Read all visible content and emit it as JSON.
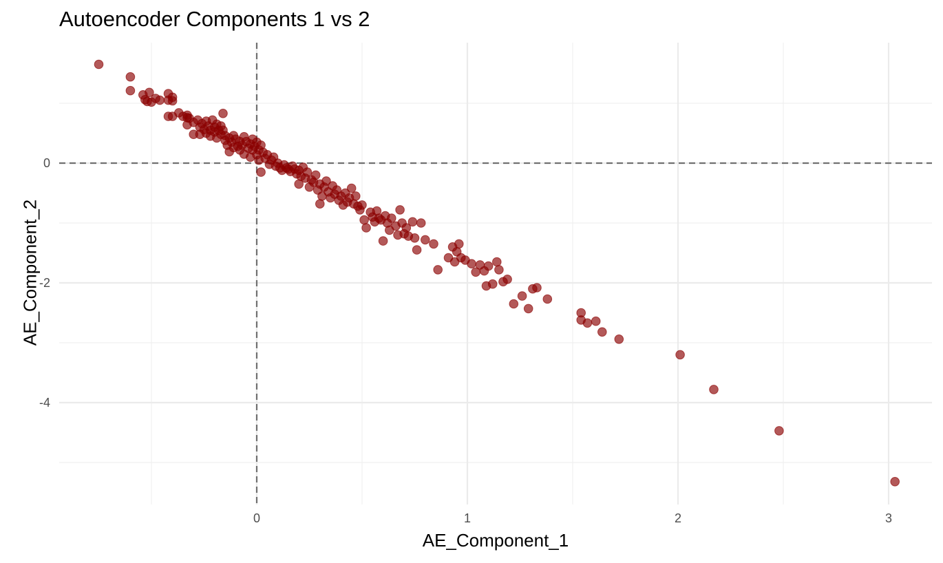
{
  "chart_data": {
    "type": "scatter",
    "title": "Autoencoder Components 1 vs 2",
    "xlabel": "AE_Component_1",
    "ylabel": "AE_Component_2",
    "xlim": [
      -0.95,
      3.2
    ],
    "ylim": [
      -5.7,
      2.0
    ],
    "x_ticks": [
      0,
      1,
      2,
      3
    ],
    "y_ticks": [
      0,
      -2,
      -4
    ],
    "grid": true,
    "reference_lines": {
      "x": 0,
      "y": 0,
      "style": "dashed"
    },
    "point_color": "#8B0000",
    "point_opacity": 0.65,
    "points": [
      [
        -0.75,
        1.65
      ],
      [
        -0.6,
        1.44
      ],
      [
        -0.6,
        1.21
      ],
      [
        -0.54,
        1.14
      ],
      [
        -0.51,
        1.18
      ],
      [
        -0.53,
        1.06
      ],
      [
        -0.52,
        1.03
      ],
      [
        -0.5,
        1.02
      ],
      [
        -0.48,
        1.08
      ],
      [
        -0.46,
        1.05
      ],
      [
        -0.42,
        1.05
      ],
      [
        -0.42,
        1.16
      ],
      [
        -0.4,
        1.1
      ],
      [
        -0.4,
        1.04
      ],
      [
        -0.42,
        0.78
      ],
      [
        -0.4,
        0.78
      ],
      [
        -0.37,
        0.84
      ],
      [
        -0.35,
        0.78
      ],
      [
        -0.33,
        0.8
      ],
      [
        -0.33,
        0.76
      ],
      [
        -0.33,
        0.64
      ],
      [
        -0.32,
        0.75
      ],
      [
        -0.3,
        0.68
      ],
      [
        -0.3,
        0.48
      ],
      [
        -0.28,
        0.72
      ],
      [
        -0.27,
        0.6
      ],
      [
        -0.27,
        0.48
      ],
      [
        -0.26,
        0.66
      ],
      [
        -0.25,
        0.56
      ],
      [
        -0.24,
        0.7
      ],
      [
        -0.24,
        0.5
      ],
      [
        -0.23,
        0.62
      ],
      [
        -0.22,
        0.55
      ],
      [
        -0.22,
        0.45
      ],
      [
        -0.21,
        0.72
      ],
      [
        -0.2,
        0.6
      ],
      [
        -0.2,
        0.52
      ],
      [
        -0.19,
        0.65
      ],
      [
        -0.19,
        0.42
      ],
      [
        -0.18,
        0.55
      ],
      [
        -0.17,
        0.48
      ],
      [
        -0.17,
        0.62
      ],
      [
        -0.16,
        0.83
      ],
      [
        -0.16,
        0.55
      ],
      [
        -0.15,
        0.38
      ],
      [
        -0.15,
        0.46
      ],
      [
        -0.14,
        0.3
      ],
      [
        -0.13,
        0.42
      ],
      [
        -0.13,
        0.19
      ],
      [
        -0.12,
        0.35
      ],
      [
        -0.11,
        0.46
      ],
      [
        -0.11,
        0.26
      ],
      [
        -0.1,
        0.4
      ],
      [
        -0.09,
        0.28
      ],
      [
        -0.08,
        0.36
      ],
      [
        -0.08,
        0.22
      ],
      [
        -0.07,
        0.3
      ],
      [
        -0.06,
        0.44
      ],
      [
        -0.06,
        0.15
      ],
      [
        -0.05,
        0.36
      ],
      [
        -0.04,
        0.25
      ],
      [
        -0.03,
        0.32
      ],
      [
        -0.03,
        0.1
      ],
      [
        -0.02,
        0.4
      ],
      [
        -0.02,
        0.22
      ],
      [
        -0.01,
        0.28
      ],
      [
        0.0,
        0.35
      ],
      [
        0.0,
        0.14
      ],
      [
        0.01,
        0.22
      ],
      [
        0.01,
        0.05
      ],
      [
        0.02,
        0.3
      ],
      [
        0.02,
        -0.15
      ],
      [
        0.03,
        0.18
      ],
      [
        0.04,
        0.08
      ],
      [
        0.05,
        0.14
      ],
      [
        0.06,
        -0.02
      ],
      [
        0.07,
        0.05
      ],
      [
        0.08,
        0.1
      ],
      [
        0.09,
        -0.05
      ],
      [
        0.1,
        0.0
      ],
      [
        0.11,
        -0.08
      ],
      [
        0.12,
        -0.12
      ],
      [
        0.13,
        -0.03
      ],
      [
        0.14,
        -0.08
      ],
      [
        0.15,
        -0.1
      ],
      [
        0.16,
        -0.14
      ],
      [
        0.17,
        -0.05
      ],
      [
        0.18,
        -0.1
      ],
      [
        0.19,
        -0.18
      ],
      [
        0.2,
        -0.12
      ],
      [
        0.2,
        -0.35
      ],
      [
        0.21,
        -0.22
      ],
      [
        0.22,
        -0.07
      ],
      [
        0.23,
        -0.25
      ],
      [
        0.24,
        -0.15
      ],
      [
        0.25,
        -0.4
      ],
      [
        0.26,
        -0.28
      ],
      [
        0.27,
        -0.32
      ],
      [
        0.28,
        -0.2
      ],
      [
        0.29,
        -0.45
      ],
      [
        0.3,
        -0.35
      ],
      [
        0.3,
        -0.68
      ],
      [
        0.31,
        -0.55
      ],
      [
        0.32,
        -0.4
      ],
      [
        0.33,
        -0.3
      ],
      [
        0.34,
        -0.48
      ],
      [
        0.35,
        -0.58
      ],
      [
        0.36,
        -0.38
      ],
      [
        0.37,
        -0.52
      ],
      [
        0.38,
        -0.45
      ],
      [
        0.39,
        -0.62
      ],
      [
        0.4,
        -0.55
      ],
      [
        0.41,
        -0.7
      ],
      [
        0.42,
        -0.5
      ],
      [
        0.43,
        -0.65
      ],
      [
        0.44,
        -0.58
      ],
      [
        0.45,
        -0.42
      ],
      [
        0.46,
        -0.68
      ],
      [
        0.47,
        -0.55
      ],
      [
        0.48,
        -0.72
      ],
      [
        0.49,
        -0.78
      ],
      [
        0.5,
        -0.7
      ],
      [
        0.51,
        -0.95
      ],
      [
        0.52,
        -1.08
      ],
      [
        0.54,
        -0.82
      ],
      [
        0.55,
        -0.9
      ],
      [
        0.56,
        -0.98
      ],
      [
        0.57,
        -0.8
      ],
      [
        0.58,
        -0.92
      ],
      [
        0.59,
        -0.95
      ],
      [
        0.6,
        -1.3
      ],
      [
        0.61,
        -0.88
      ],
      [
        0.62,
        -1.0
      ],
      [
        0.63,
        -1.12
      ],
      [
        0.64,
        -0.92
      ],
      [
        0.66,
        -1.05
      ],
      [
        0.67,
        -1.2
      ],
      [
        0.68,
        -0.78
      ],
      [
        0.69,
        -1.0
      ],
      [
        0.7,
        -1.18
      ],
      [
        0.71,
        -1.08
      ],
      [
        0.72,
        -1.22
      ],
      [
        0.74,
        -0.98
      ],
      [
        0.75,
        -1.25
      ],
      [
        0.76,
        -1.45
      ],
      [
        0.78,
        -1.0
      ],
      [
        0.8,
        -1.28
      ],
      [
        0.84,
        -1.35
      ],
      [
        0.86,
        -1.78
      ],
      [
        0.91,
        -1.58
      ],
      [
        0.93,
        -1.4
      ],
      [
        0.94,
        -1.65
      ],
      [
        0.95,
        -1.48
      ],
      [
        0.96,
        -1.35
      ],
      [
        0.97,
        -1.58
      ],
      [
        0.99,
        -1.62
      ],
      [
        1.02,
        -1.68
      ],
      [
        1.04,
        -1.82
      ],
      [
        1.06,
        -1.7
      ],
      [
        1.08,
        -1.8
      ],
      [
        1.09,
        -2.05
      ],
      [
        1.1,
        -1.72
      ],
      [
        1.12,
        -2.02
      ],
      [
        1.14,
        -1.65
      ],
      [
        1.15,
        -1.78
      ],
      [
        1.17,
        -1.98
      ],
      [
        1.19,
        -1.94
      ],
      [
        1.22,
        -2.35
      ],
      [
        1.26,
        -2.22
      ],
      [
        1.29,
        -2.43
      ],
      [
        1.31,
        -2.1
      ],
      [
        1.33,
        -2.08
      ],
      [
        1.38,
        -2.27
      ],
      [
        1.54,
        -2.5
      ],
      [
        1.54,
        -2.62
      ],
      [
        1.57,
        -2.67
      ],
      [
        1.61,
        -2.64
      ],
      [
        1.64,
        -2.82
      ],
      [
        1.72,
        -2.94
      ],
      [
        2.01,
        -3.2
      ],
      [
        2.17,
        -3.78
      ],
      [
        2.48,
        -4.47
      ],
      [
        3.03,
        -5.32
      ]
    ]
  }
}
